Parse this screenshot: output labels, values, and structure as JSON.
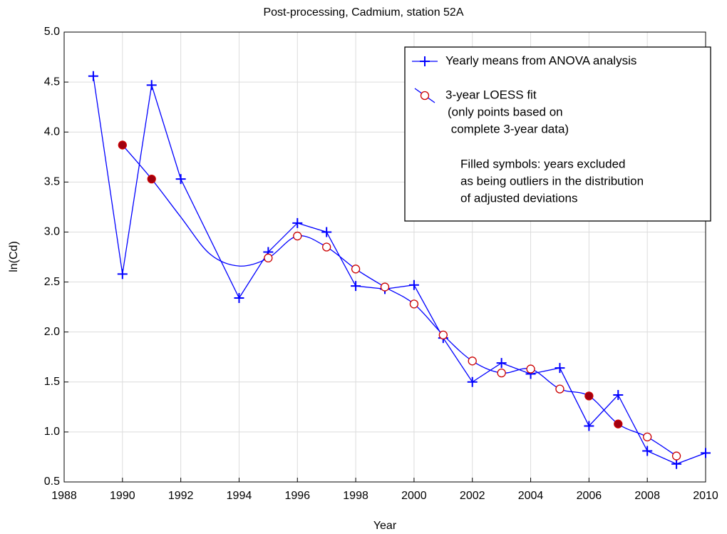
{
  "chart_data": {
    "type": "line",
    "title": "Post-processing, Cadmium, station 52A",
    "xlabel": "Year",
    "ylabel": "ln(Cd)",
    "xlim": [
      1988,
      2010
    ],
    "xticks": [
      1988,
      1990,
      1992,
      1994,
      1996,
      1998,
      2000,
      2002,
      2004,
      2006,
      2008,
      2010
    ],
    "ylim": [
      0.5,
      5.0
    ],
    "yticks": [
      0.5,
      {
        "value": 1,
        "label": "1.0"
      },
      1.5,
      {
        "value": 2,
        "label": "2.0"
      },
      2.5,
      {
        "value": 3,
        "label": "3.0"
      },
      3.5,
      {
        "value": 4,
        "label": "4.0"
      },
      4.5,
      {
        "value": 5,
        "label": "5.0"
      }
    ],
    "grid": true,
    "legend": "upper right",
    "series": [
      {
        "name": "Yearly means from ANOVA analysis",
        "color": "#0000ff",
        "smooth": false,
        "x": [
          1989,
          1990,
          1991,
          1992,
          1994,
          1995,
          1996,
          1997,
          1998,
          1999,
          2000,
          2001,
          2002,
          2003,
          2004,
          2005,
          2006,
          2007,
          2008,
          2009,
          2010
        ],
        "values": [
          4.56,
          2.58,
          4.47,
          3.53,
          2.34,
          2.8,
          3.09,
          3.0,
          2.46,
          2.43,
          2.47,
          1.94,
          1.5,
          1.69,
          1.58,
          1.64,
          1.06,
          1.37,
          0.81,
          0.68,
          0.79
        ],
        "marker": "cross"
      },
      {
        "name": "3-year LOESS fit",
        "color": "#0000ff",
        "marker_color": "#cc0000",
        "fill_color": "#a00010",
        "smooth": true,
        "x": [
          1990,
          1991,
          1992,
          1993,
          1994,
          1995,
          1996,
          1997,
          1998,
          1999,
          2000,
          2001,
          2002,
          2003,
          2004,
          2005,
          2006,
          2007,
          2008,
          2009
        ],
        "values": [
          3.87,
          3.53,
          3.15,
          2.78,
          2.66,
          2.74,
          2.96,
          2.85,
          2.63,
          2.45,
          2.28,
          1.97,
          1.71,
          1.59,
          1.63,
          1.43,
          1.36,
          1.08,
          0.95,
          0.76
        ],
        "marker": [
          "filled",
          "filled",
          null,
          null,
          null,
          "open",
          "open",
          "open",
          "open",
          "open",
          "open",
          "open",
          "open",
          "open",
          "open",
          "open",
          "filled",
          "filled",
          "open",
          "open"
        ]
      }
    ],
    "legend_note": [
      "(only points based on",
      " complete 3-year data)",
      "Filled symbols: years excluded",
      "as being outliers in the distribution",
      "of adjusted deviations"
    ]
  }
}
